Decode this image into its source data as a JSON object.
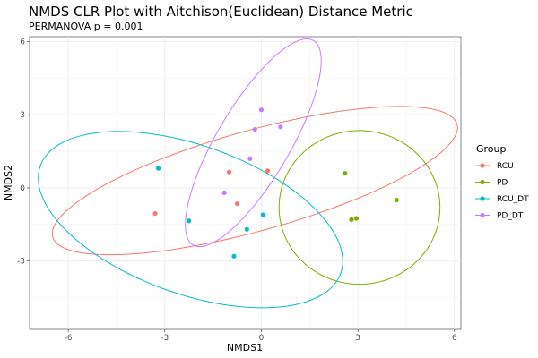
{
  "chart_data": {
    "type": "scatter",
    "title": "NMDS CLR Plot with Aitchison(Euclidean) Distance Metric",
    "subtitle": "PERMANOVA p = 0.001",
    "xlabel": "NMDS1",
    "ylabel": "NMDS2",
    "xlim": [
      -7.2,
      6.2
    ],
    "ylim": [
      -5.8,
      6.2
    ],
    "x_ticks": [
      -6,
      -3,
      0,
      3,
      6
    ],
    "x_tick_labels": [
      "-6",
      "-3",
      "0",
      "3",
      "6"
    ],
    "y_ticks": [
      -3,
      0,
      3,
      6
    ],
    "y_tick_labels": [
      "-3",
      "0",
      "3",
      "6"
    ],
    "grid": true,
    "legend": {
      "title": "Group",
      "position": "right"
    },
    "series": [
      {
        "name": "RCU",
        "color": "#F8766D",
        "points": [
          [
            -3.3,
            -1.05
          ],
          [
            -1.0,
            0.65
          ],
          [
            -0.75,
            -0.65
          ],
          [
            0.2,
            0.7
          ]
        ],
        "ellipse": {
          "center": [
            -0.2,
            0.3
          ],
          "rx": 6.7,
          "ry": 2.0,
          "angle_deg": 21
        }
      },
      {
        "name": "PD",
        "color": "#7CAE00",
        "points": [
          [
            2.6,
            0.6
          ],
          [
            2.8,
            -1.3
          ],
          [
            2.95,
            -1.25
          ],
          [
            4.2,
            -0.5
          ]
        ],
        "ellipse": {
          "center": [
            3.05,
            -0.8
          ],
          "rx": 2.5,
          "ry": 3.15,
          "angle_deg": 0
        }
      },
      {
        "name": "RCU_DT",
        "color": "#00BFC4",
        "points": [
          [
            -3.2,
            0.8
          ],
          [
            -2.25,
            -1.35
          ],
          [
            -0.45,
            -1.7
          ],
          [
            0.05,
            -1.1
          ],
          [
            -0.85,
            -2.8
          ]
        ],
        "ellipse": {
          "center": [
            -2.2,
            -1.3
          ],
          "rx": 5.2,
          "ry": 2.9,
          "angle_deg": -30
        }
      },
      {
        "name": "PD_DT",
        "color": "#C77CFF",
        "points": [
          [
            0.0,
            3.2
          ],
          [
            -0.2,
            2.4
          ],
          [
            0.6,
            2.5
          ],
          [
            -0.35,
            1.2
          ],
          [
            -1.15,
            -0.2
          ]
        ],
        "ellipse": {
          "center": [
            -0.25,
            1.85
          ],
          "rx": 4.6,
          "ry": 1.2,
          "angle_deg": 67
        }
      }
    ]
  }
}
